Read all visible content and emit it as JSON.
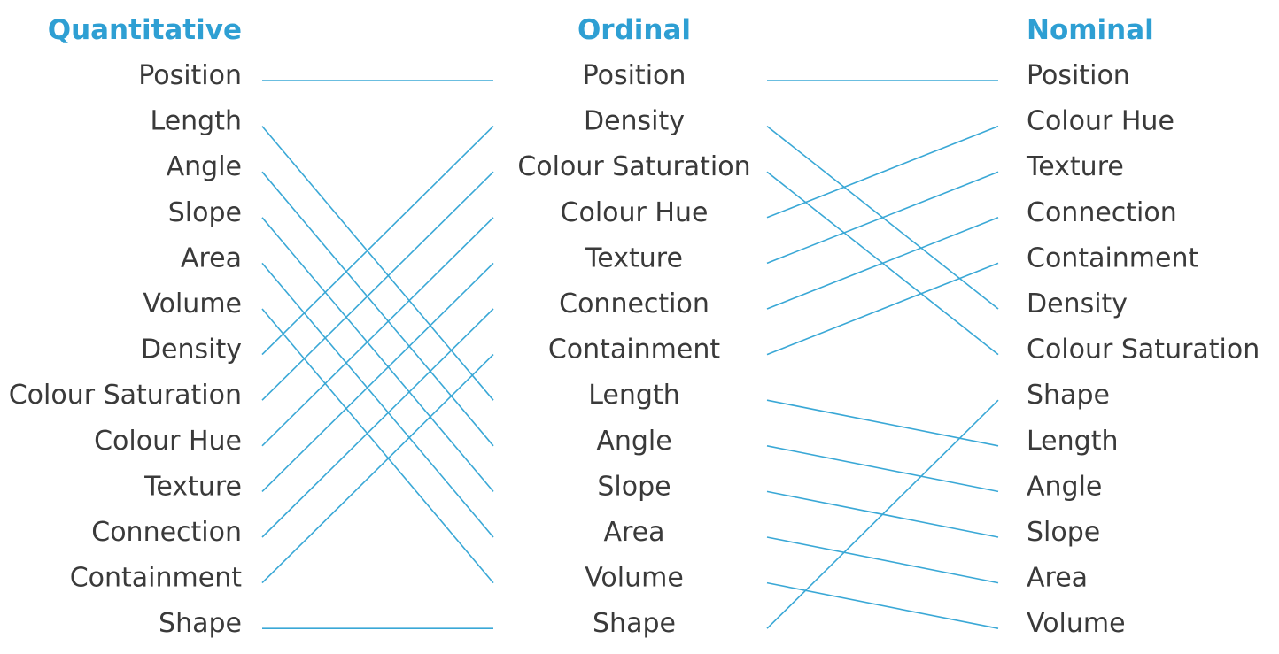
{
  "columns": [
    {
      "key": "quantitative",
      "heading": "Quantitative",
      "items": [
        "Position",
        "Length",
        "Angle",
        "Slope",
        "Area",
        "Volume",
        "Density",
        "Colour Saturation",
        "Colour Hue",
        "Texture",
        "Connection",
        "Containment",
        "Shape"
      ]
    },
    {
      "key": "ordinal",
      "heading": "Ordinal",
      "items": [
        "Position",
        "Density",
        "Colour Saturation",
        "Colour Hue",
        "Texture",
        "Connection",
        "Containment",
        "Length",
        "Angle",
        "Slope",
        "Area",
        "Volume",
        "Shape"
      ]
    },
    {
      "key": "nominal",
      "heading": "Nominal",
      "items": [
        "Position",
        "Colour Hue",
        "Texture",
        "Connection",
        "Containment",
        "Density",
        "Colour Saturation",
        "Shape",
        "Length",
        "Angle",
        "Slope",
        "Area",
        "Volume"
      ]
    }
  ],
  "colors": {
    "heading": "#2e9fd3",
    "label": "#3a3a3a",
    "connector": "#3aa8d6"
  }
}
